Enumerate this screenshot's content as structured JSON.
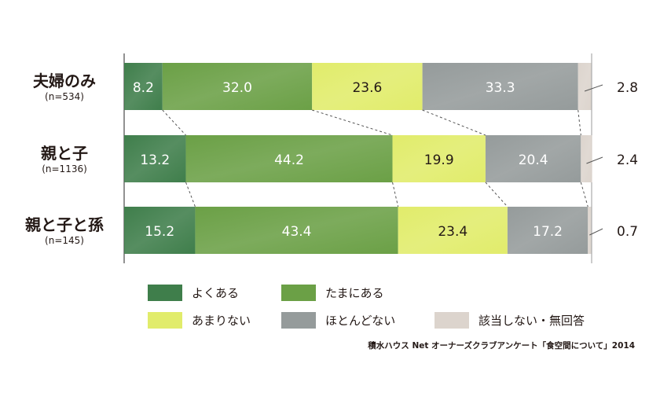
{
  "chart_data": {
    "type": "bar",
    "orientation": "horizontal",
    "stacked": true,
    "percent_scale": true,
    "categories": [
      {
        "label": "夫婦のみ",
        "sublabel": "(n=534)"
      },
      {
        "label": "親と子",
        "sublabel": "(n=1136)"
      },
      {
        "label": "親と子と孫",
        "sublabel": "(n=145)"
      }
    ],
    "series": [
      {
        "name": "よくある",
        "color": "#3f7e4b",
        "values": [
          8.2,
          13.2,
          15.2
        ]
      },
      {
        "name": "たまにある",
        "color": "#6ba046",
        "values": [
          32.0,
          44.2,
          43.4
        ]
      },
      {
        "name": "あまりない",
        "color": "#e1ec6b",
        "values": [
          23.6,
          19.9,
          23.4
        ]
      },
      {
        "name": "ほとんどない",
        "color": "#959b9b",
        "values": [
          33.3,
          20.4,
          17.2
        ]
      },
      {
        "name": "該当しない・無回答",
        "color": "#dcd4cd",
        "values": [
          2.8,
          2.4,
          0.7
        ]
      }
    ],
    "value_labels": [
      [
        "8.2",
        "32.0",
        "23.6",
        "33.3",
        "2.8"
      ],
      [
        "13.2",
        "44.2",
        "19.9",
        "20.4",
        "2.4"
      ],
      [
        "15.2",
        "43.4",
        "23.4",
        "17.2",
        "0.7"
      ]
    ],
    "legend_position": "bottom",
    "connector_lines": true
  },
  "source_text": "積水ハウス Net オーナーズクラブアンケート「食空間について」2014"
}
